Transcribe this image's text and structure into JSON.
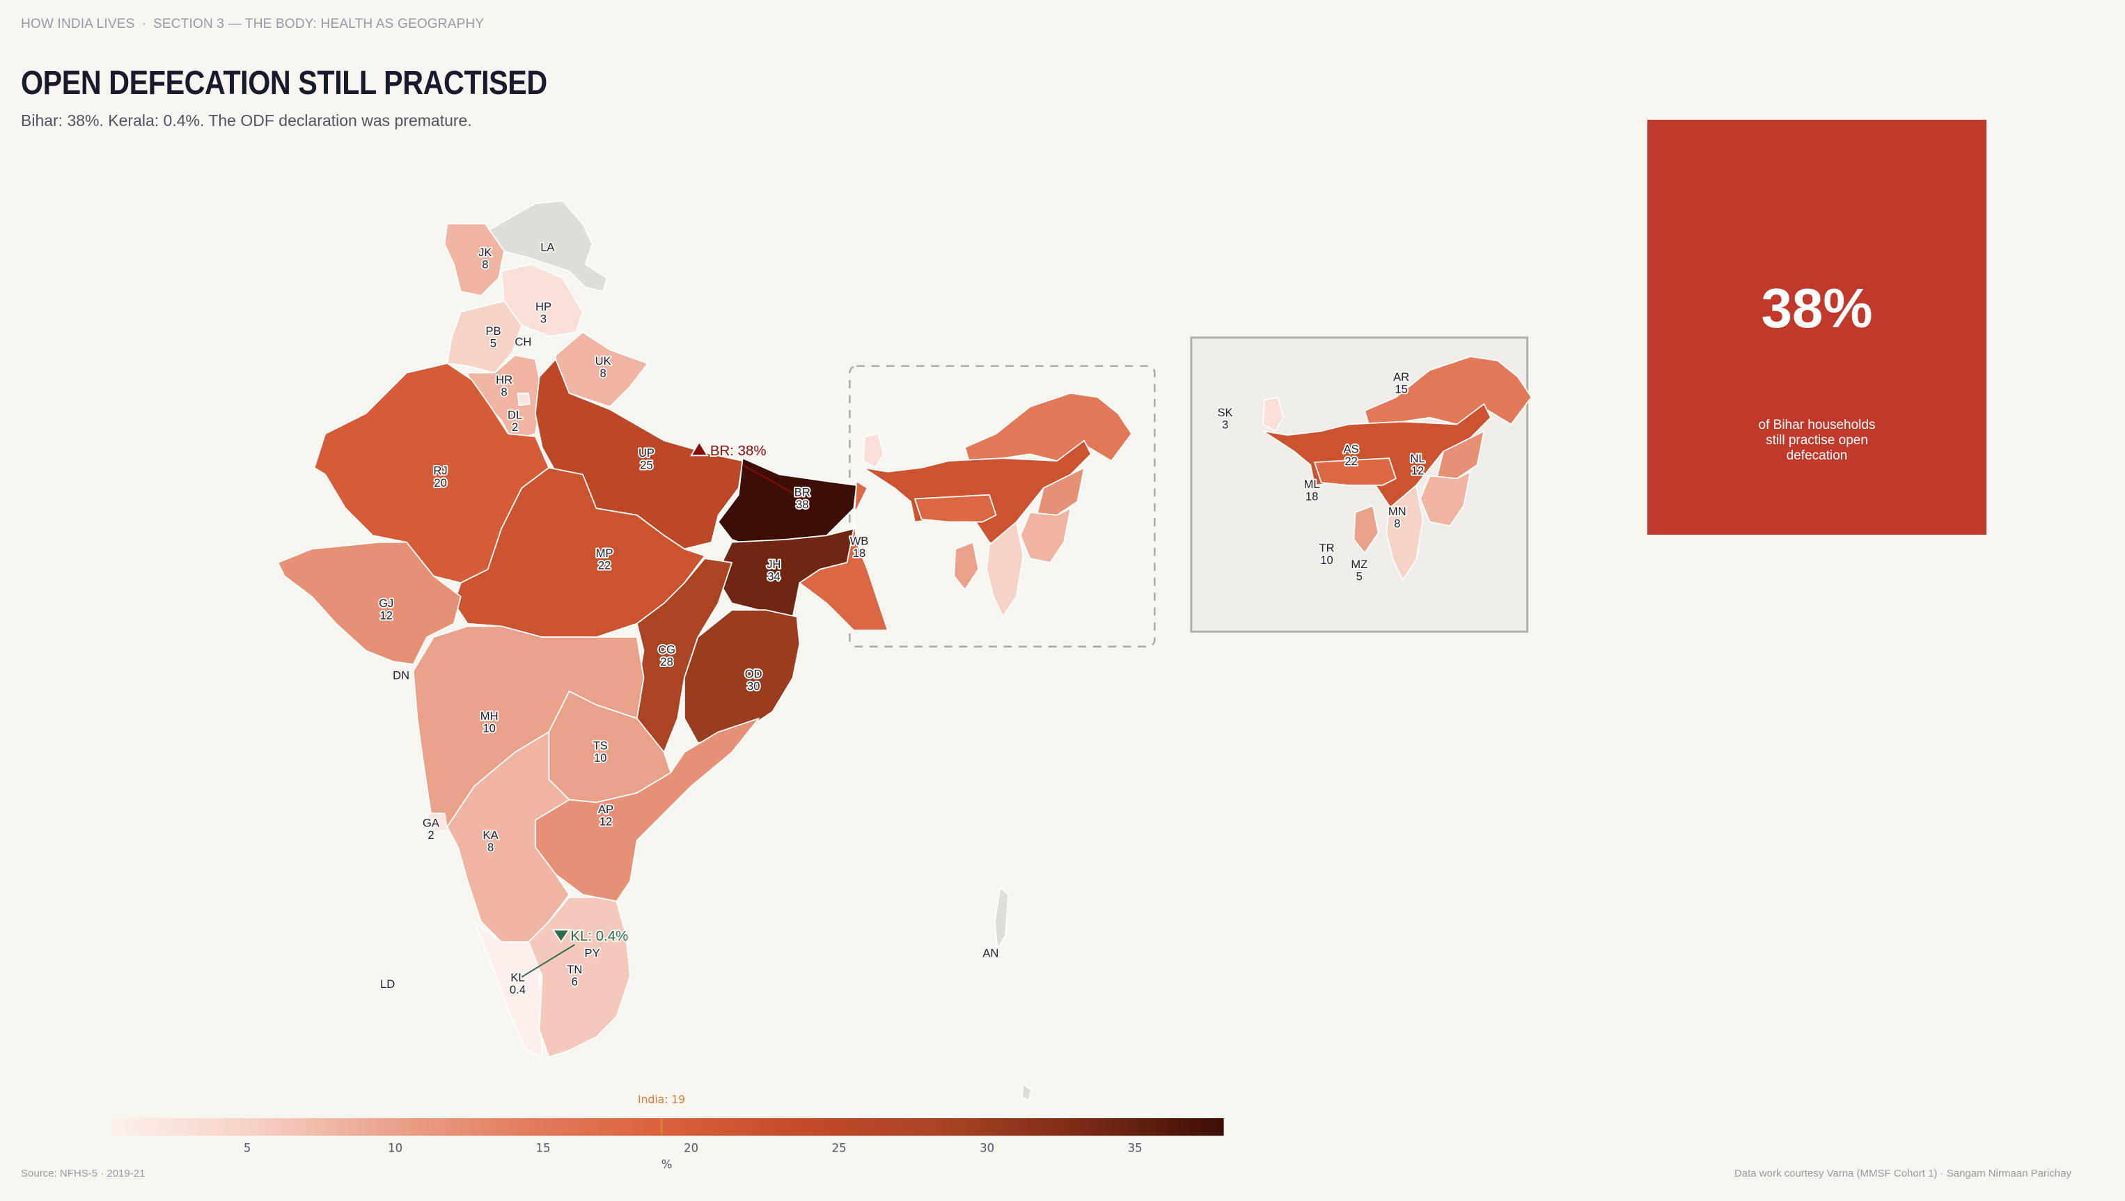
{
  "header": {
    "breadcrumb": [
      "HOW INDIA LIVES",
      "SECTION 3 — THE BODY: HEALTH AS GEOGRAPHY"
    ],
    "title": "OPEN DEFECATION STILL PRACTISED",
    "subtitle": "Bihar: 38%. Kerala: 0.4%. The ODF declaration was premature."
  },
  "stat_card": {
    "value": "38%",
    "caption": [
      "of Bihar households",
      "still practise open",
      "defecation"
    ],
    "color": "#c0392b"
  },
  "map": {
    "metric_unit": "%",
    "no_data_color": "#dfddd8",
    "states": [
      {
        "code": "JK",
        "value": 8
      },
      {
        "code": "LA",
        "value": null
      },
      {
        "code": "HP",
        "value": 3
      },
      {
        "code": "PB",
        "value": 5
      },
      {
        "code": "CH",
        "value": null
      },
      {
        "code": "HR",
        "value": 8
      },
      {
        "code": "DL",
        "value": 2
      },
      {
        "code": "UK",
        "value": 8
      },
      {
        "code": "RJ",
        "value": 20
      },
      {
        "code": "UP",
        "value": 25
      },
      {
        "code": "BR",
        "value": 38
      },
      {
        "code": "WB",
        "value": 18
      },
      {
        "code": "JH",
        "value": 34
      },
      {
        "code": "MP",
        "value": 22
      },
      {
        "code": "GJ",
        "value": 12
      },
      {
        "code": "DN",
        "value": null
      },
      {
        "code": "CG",
        "value": 28
      },
      {
        "code": "OD",
        "value": 30
      },
      {
        "code": "MH",
        "value": 10
      },
      {
        "code": "TS",
        "value": 10
      },
      {
        "code": "AP",
        "value": 12
      },
      {
        "code": "GA",
        "value": 2
      },
      {
        "code": "KA",
        "value": 8
      },
      {
        "code": "LD",
        "value": null
      },
      {
        "code": "KL",
        "value": 0.4
      },
      {
        "code": "PY",
        "value": null
      },
      {
        "code": "TN",
        "value": 6
      },
      {
        "code": "AN",
        "value": null
      },
      {
        "code": "SK",
        "value": 3
      },
      {
        "code": "AR",
        "value": 15
      },
      {
        "code": "AS",
        "value": 22
      },
      {
        "code": "NL",
        "value": 12
      },
      {
        "code": "ML",
        "value": 18
      },
      {
        "code": "MN",
        "value": 8
      },
      {
        "code": "TR",
        "value": 10
      },
      {
        "code": "MZ",
        "value": 5
      }
    ],
    "callouts": {
      "high": {
        "text": "BR: 38%",
        "color": "#8b0a0a"
      },
      "low": {
        "text": "KL: 0.4%",
        "color": "#2e6b4a"
      }
    }
  },
  "legend": {
    "domain": [
      0.4,
      38
    ],
    "ticks": [
      5,
      10,
      15,
      20,
      25,
      30,
      35
    ],
    "axis_label": "%",
    "reference": {
      "label": "India: 19",
      "value": 19,
      "color": "#e07b39"
    },
    "colors": [
      "#fdf0ec",
      "#f6d2c6",
      "#eaa38c",
      "#e27c5d",
      "#d9603a",
      "#c24a2a",
      "#a84322",
      "#7a2a16",
      "#3d0e05"
    ]
  },
  "footer": {
    "source": "Source: NFHS-5  ·  2019-21",
    "credits": "Data work courtesy Varna (MMSF Cohort 1)  ·  Sangam Nirmaan Parichay"
  }
}
